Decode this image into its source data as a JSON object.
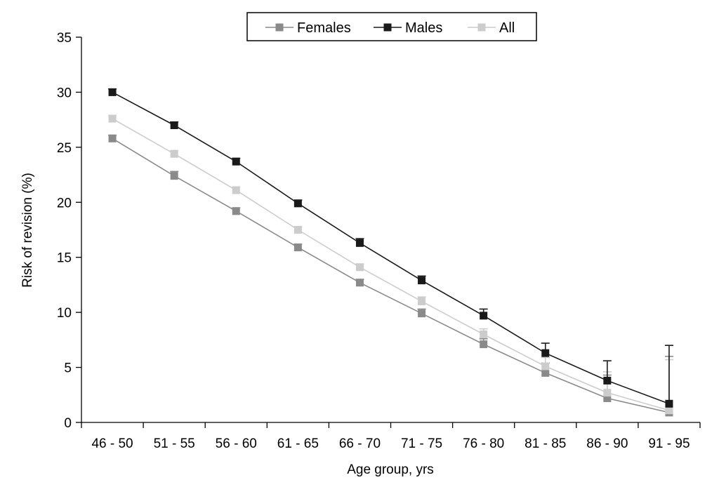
{
  "chart_data": {
    "type": "line",
    "title": "",
    "xlabel": "Age group, yrs",
    "ylabel": "Risk of revision (%)",
    "categories": [
      "46 - 50",
      "51 - 55",
      "56 - 60",
      "61 - 65",
      "66 - 70",
      "71 - 75",
      "76 - 80",
      "81 - 85",
      "86 - 90",
      "91 - 95"
    ],
    "ylim": [
      0,
      35
    ],
    "yticks": [
      0,
      5,
      10,
      15,
      20,
      25,
      30,
      35
    ],
    "grid": false,
    "legend_position": "top-center",
    "error_bars": "upper",
    "series": [
      {
        "name": "Females",
        "color": "#8a8a8a",
        "values": [
          25.8,
          22.4,
          19.2,
          15.9,
          12.7,
          9.9,
          7.1,
          4.5,
          2.2,
          0.9
        ],
        "upper": [
          26.1,
          22.8,
          19.5,
          16.2,
          13.0,
          10.3,
          7.6,
          5.4,
          4.3,
          6.0
        ]
      },
      {
        "name": "Males",
        "color": "#1a1a1a",
        "values": [
          30.0,
          27.0,
          23.7,
          19.9,
          16.3,
          12.9,
          9.7,
          6.3,
          3.8,
          1.7
        ],
        "upper": [
          30.3,
          27.3,
          24.0,
          20.2,
          16.7,
          13.3,
          10.3,
          7.2,
          5.6,
          7.0
        ]
      },
      {
        "name": "All",
        "color": "#cccccc",
        "values": [
          27.6,
          24.4,
          21.1,
          17.5,
          14.1,
          11.0,
          8.0,
          5.1,
          2.7,
          1.1
        ],
        "upper": [
          27.9,
          24.7,
          21.4,
          17.8,
          14.4,
          11.4,
          8.5,
          5.9,
          4.6,
          5.7
        ]
      }
    ]
  }
}
